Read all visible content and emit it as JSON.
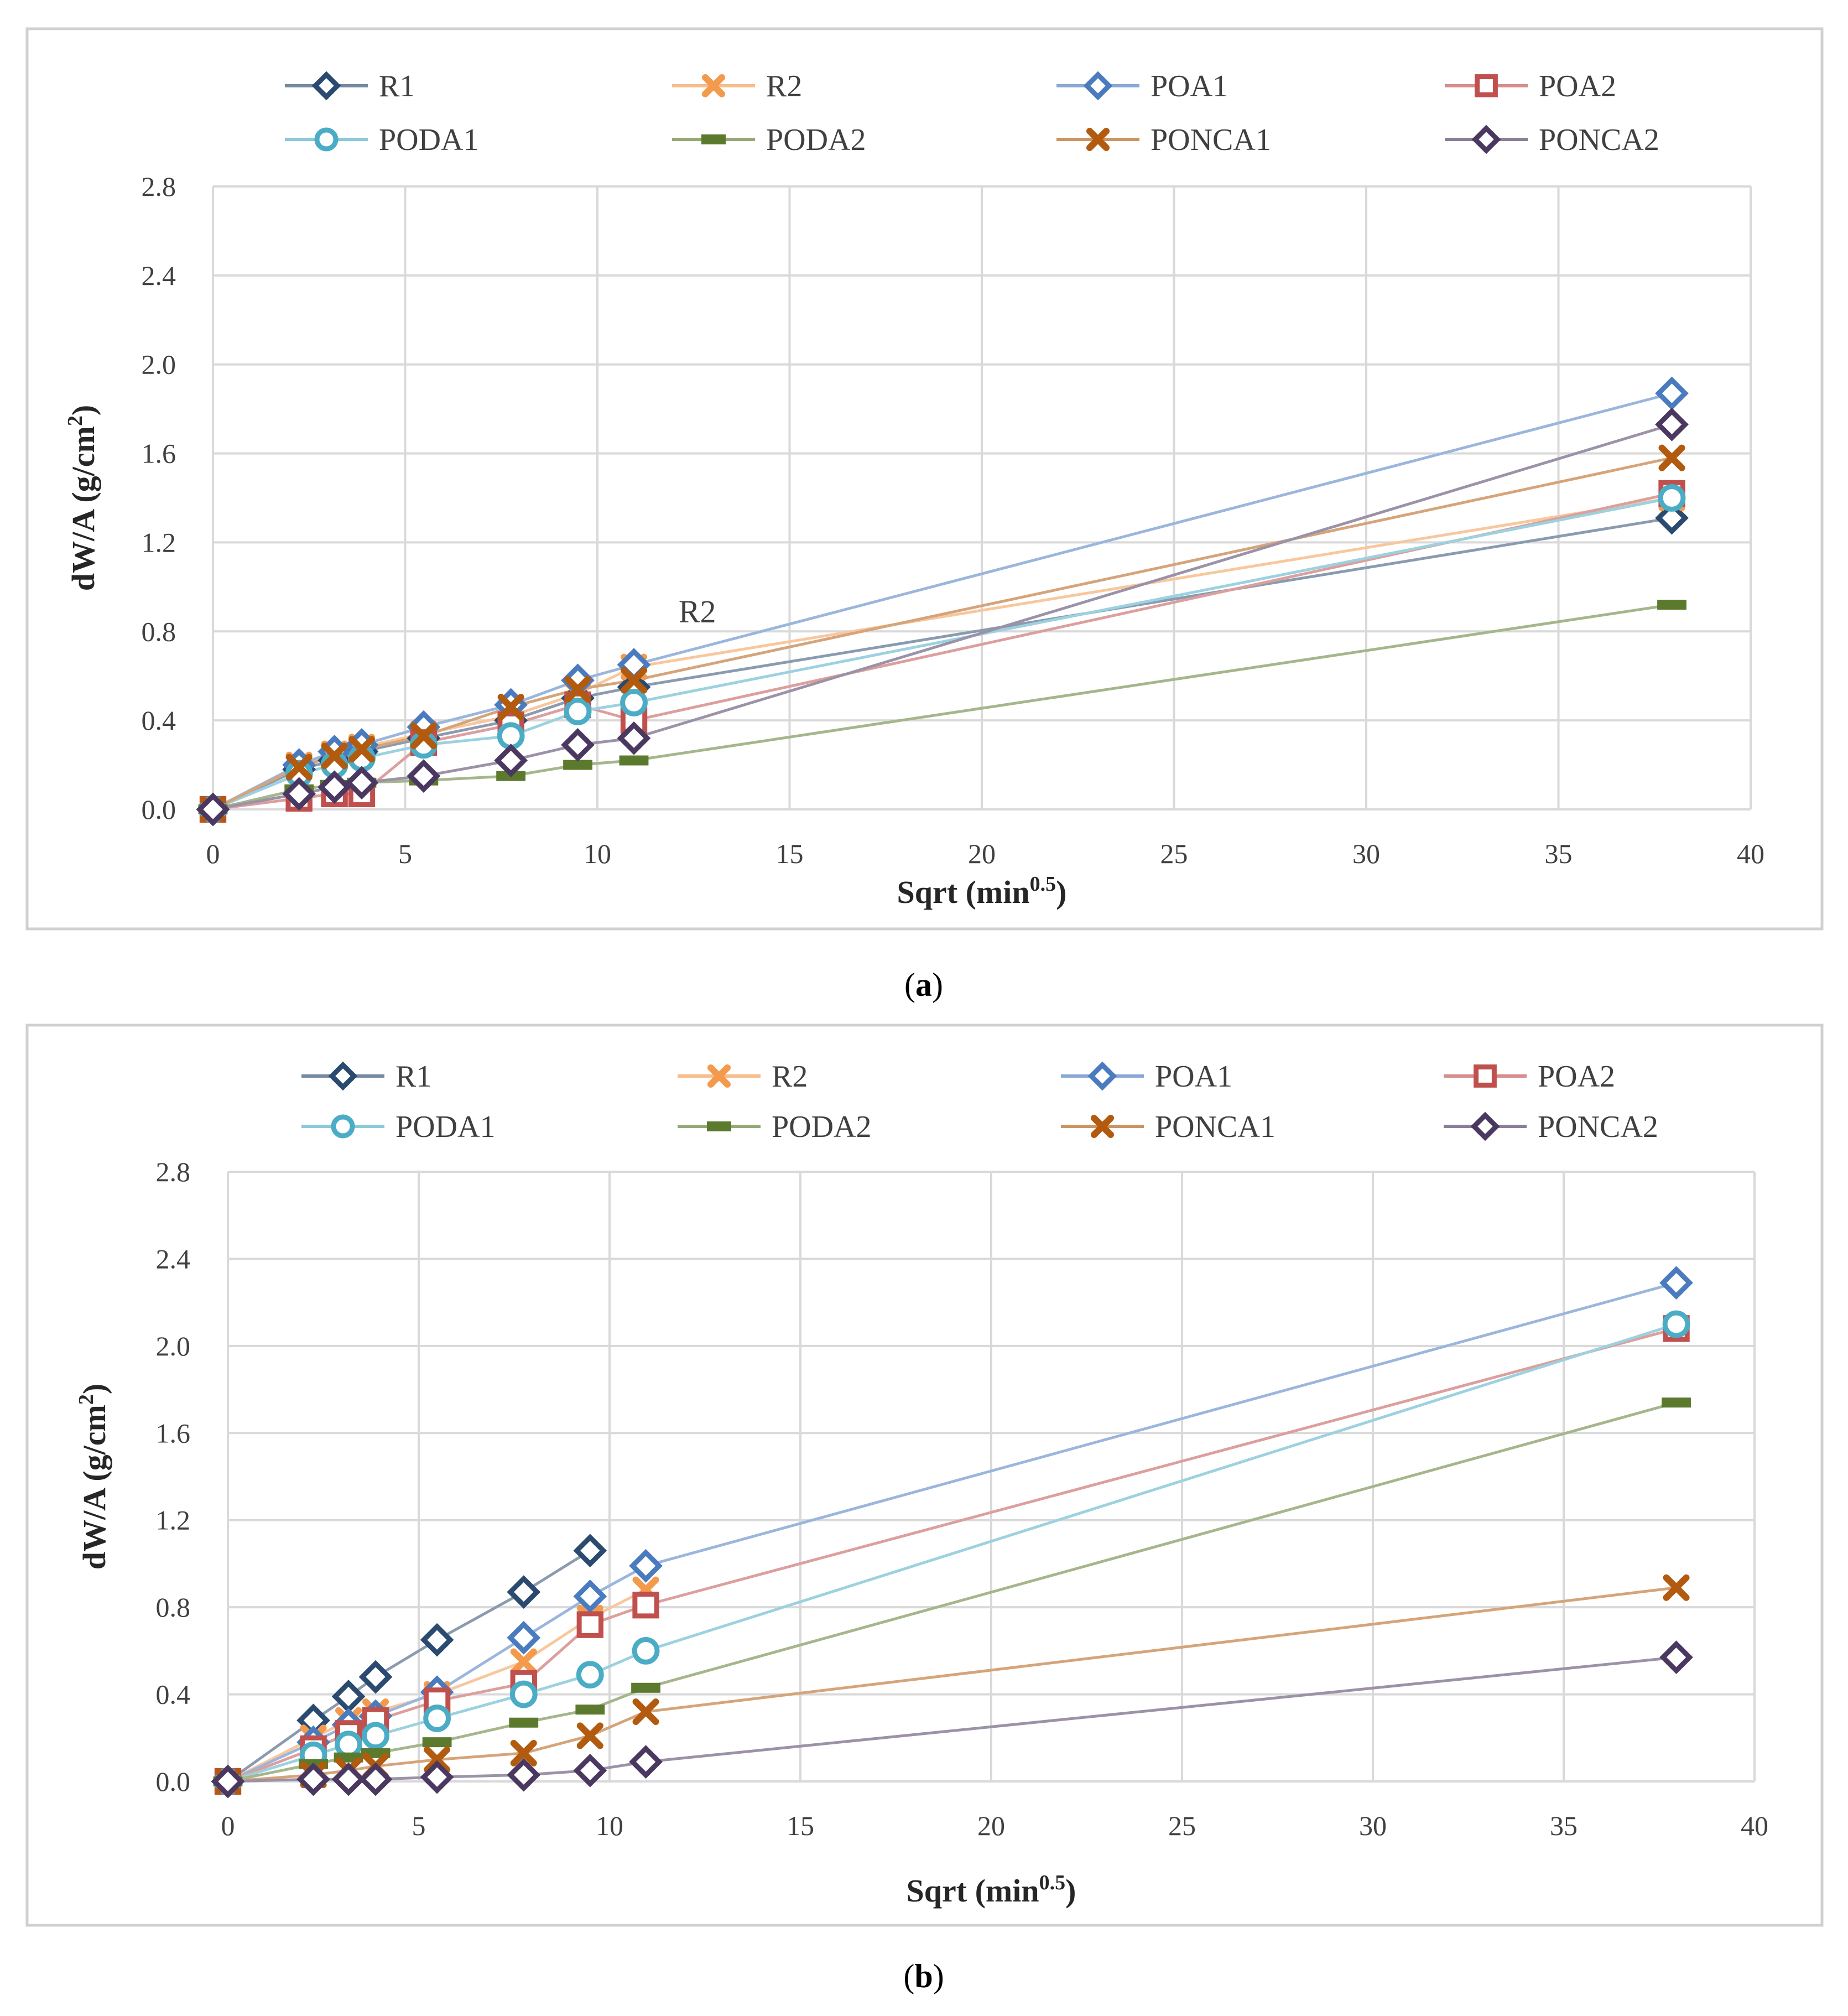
{
  "x_ticks": [
    "0",
    "5",
    "10",
    "15",
    "20",
    "25",
    "30",
    "35",
    "40"
  ],
  "y_ticks": [
    "0.0",
    "0.4",
    "0.8",
    "1.2",
    "1.6",
    "2.0",
    "2.4",
    "2.8"
  ],
  "colors": {
    "R1": "#2b4a6f",
    "R2": "#f39a4c",
    "POA1": "#4a7bbf",
    "POA2": "#c0504d",
    "PODA1": "#4bacc6",
    "PODA2": "#5c7a2e",
    "PONCA1": "#b25a0e",
    "PONCA2": "#4b3860"
  },
  "chart_data": [
    {
      "type": "line",
      "xlabel": "Sqrt (min",
      "xlabel_sup": "0.5",
      "xlabel_end": ")",
      "ylabel": "dW/A (g/cm",
      "ylabel_sup": "2",
      "ylabel_end": ")",
      "caption_letter": "a",
      "xlim": [
        0,
        40
      ],
      "ylim": [
        0,
        2.8
      ],
      "annotation": "R2",
      "legend_position": "top",
      "grid": true,
      "x": [
        0,
        2.24,
        3.16,
        3.87,
        5.48,
        7.75,
        9.49,
        10.95,
        37.95
      ],
      "series": [
        {
          "name": "R1",
          "marker": "diamond",
          "values": [
            0,
            0.18,
            0.22,
            0.26,
            0.32,
            0.4,
            0.5,
            0.55,
            1.31
          ]
        },
        {
          "name": "R2",
          "marker": "x",
          "values": [
            0,
            0.2,
            0.25,
            0.28,
            0.34,
            0.42,
            0.52,
            0.64,
            1.4
          ]
        },
        {
          "name": "POA1",
          "marker": "diamond",
          "values": [
            0,
            0.2,
            0.26,
            0.29,
            0.37,
            0.47,
            0.58,
            0.65,
            1.87
          ]
        },
        {
          "name": "POA2",
          "marker": "square",
          "values": [
            0,
            0.05,
            0.07,
            0.07,
            0.3,
            0.38,
            0.47,
            0.4,
            1.42
          ]
        },
        {
          "name": "PODA1",
          "marker": "circle",
          "values": [
            0,
            0.16,
            0.2,
            0.23,
            0.29,
            0.33,
            0.44,
            0.48,
            1.4
          ]
        },
        {
          "name": "PODA2",
          "marker": "dash",
          "values": [
            0,
            0.09,
            0.11,
            0.12,
            0.13,
            0.15,
            0.2,
            0.22,
            0.92
          ]
        },
        {
          "name": "PONCA1",
          "marker": "x",
          "values": [
            0,
            0.19,
            0.24,
            0.27,
            0.33,
            0.46,
            0.54,
            0.58,
            1.58
          ]
        },
        {
          "name": "PONCA2",
          "marker": "diamond",
          "values": [
            0,
            0.07,
            0.1,
            0.12,
            0.15,
            0.22,
            0.29,
            0.32,
            1.73
          ]
        }
      ]
    },
    {
      "type": "line",
      "xlabel": "Sqrt (min",
      "xlabel_sup": "0.5",
      "xlabel_end": ")",
      "ylabel": "dW/A (g/cm",
      "ylabel_sup": "2",
      "ylabel_end": ")",
      "caption_letter": "b",
      "xlim": [
        0,
        40
      ],
      "ylim": [
        0,
        2.8
      ],
      "legend_position": "top",
      "grid": true,
      "x": [
        0,
        2.24,
        3.16,
        3.87,
        5.48,
        7.75,
        9.49,
        10.95,
        37.95
      ],
      "series": [
        {
          "name": "R1",
          "marker": "diamond",
          "values": [
            0,
            0.28,
            0.39,
            0.48,
            0.65,
            0.87,
            1.06,
            null,
            null
          ]
        },
        {
          "name": "R2",
          "marker": "x",
          "values": [
            0,
            0.2,
            0.28,
            0.32,
            0.4,
            0.55,
            0.75,
            0.88,
            null
          ]
        },
        {
          "name": "POA1",
          "marker": "diamond",
          "values": [
            0,
            0.18,
            0.26,
            0.3,
            0.41,
            0.66,
            0.85,
            0.99,
            2.29
          ]
        },
        {
          "name": "POA2",
          "marker": "square",
          "values": [
            0,
            0.15,
            0.22,
            0.28,
            0.37,
            0.45,
            0.72,
            0.81,
            2.08
          ]
        },
        {
          "name": "PODA1",
          "marker": "circle",
          "values": [
            0,
            0.12,
            0.17,
            0.21,
            0.29,
            0.4,
            0.49,
            0.6,
            2.1
          ]
        },
        {
          "name": "PODA2",
          "marker": "dash",
          "values": [
            0,
            0.08,
            0.11,
            0.13,
            0.18,
            0.27,
            0.33,
            0.43,
            1.74
          ]
        },
        {
          "name": "PONCA1",
          "marker": "x",
          "values": [
            0,
            0.03,
            0.05,
            0.07,
            0.1,
            0.13,
            0.21,
            0.32,
            0.89
          ]
        },
        {
          "name": "PONCA2",
          "marker": "diamond",
          "values": [
            0,
            0.01,
            0.01,
            0.01,
            0.02,
            0.03,
            0.05,
            0.09,
            0.57
          ]
        }
      ]
    }
  ]
}
